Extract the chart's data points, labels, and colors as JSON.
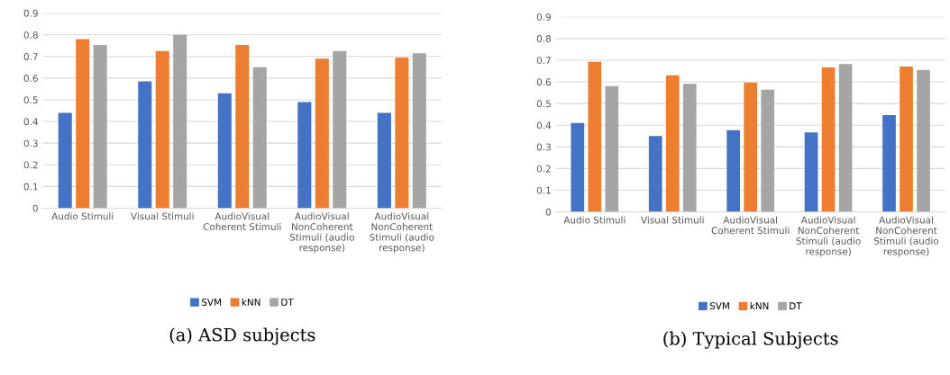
{
  "chart_data": [
    {
      "type": "bar",
      "title": "(a) ASD subjects",
      "categories": [
        "Audio Stimuli",
        "Visual Stimuli",
        "AudioVisual Coherent Stimuli",
        "AudioVisual NonCoherent Stimuli (audio response)",
        "AudioVisual NonCoherent Stimuli (audio response)"
      ],
      "series": [
        {
          "name": "SVM",
          "color": "#4472c4",
          "values": [
            0.44,
            0.585,
            0.53,
            0.49,
            0.44
          ]
        },
        {
          "name": "kNN",
          "color": "#ed7d31",
          "values": [
            0.78,
            0.725,
            0.753,
            0.69,
            0.695
          ]
        },
        {
          "name": "DT",
          "color": "#a5a5a5",
          "values": [
            0.753,
            0.8,
            0.65,
            0.725,
            0.715
          ]
        }
      ],
      "ylim": [
        0,
        0.9
      ],
      "yticks": [
        0,
        0.1,
        0.2,
        0.3,
        0.4,
        0.5,
        0.6,
        0.7,
        0.8,
        0.9
      ],
      "grid": "y",
      "legend": "bottom"
    },
    {
      "type": "bar",
      "title": "(b) Typical Subjects",
      "categories": [
        "Audio Stimuli",
        "Visual Stimuli",
        "AudioVisual Coherent Stimuli",
        "AudioVisual NonCoherent Stimuli (audio response)",
        "AudioVisual NonCoherent Stimuli (audio response)"
      ],
      "series": [
        {
          "name": "SVM",
          "color": "#4472c4",
          "values": [
            0.41,
            0.35,
            0.377,
            0.367,
            0.447
          ]
        },
        {
          "name": "kNN",
          "color": "#ed7d31",
          "values": [
            0.693,
            0.63,
            0.597,
            0.667,
            0.671
          ]
        },
        {
          "name": "DT",
          "color": "#a5a5a5",
          "values": [
            0.58,
            0.591,
            0.564,
            0.682,
            0.655
          ]
        }
      ],
      "ylim": [
        0,
        0.9
      ],
      "yticks": [
        0,
        0.1,
        0.2,
        0.3,
        0.4,
        0.5,
        0.6,
        0.7,
        0.8,
        0.9
      ],
      "grid": "y",
      "legend": "bottom"
    }
  ]
}
